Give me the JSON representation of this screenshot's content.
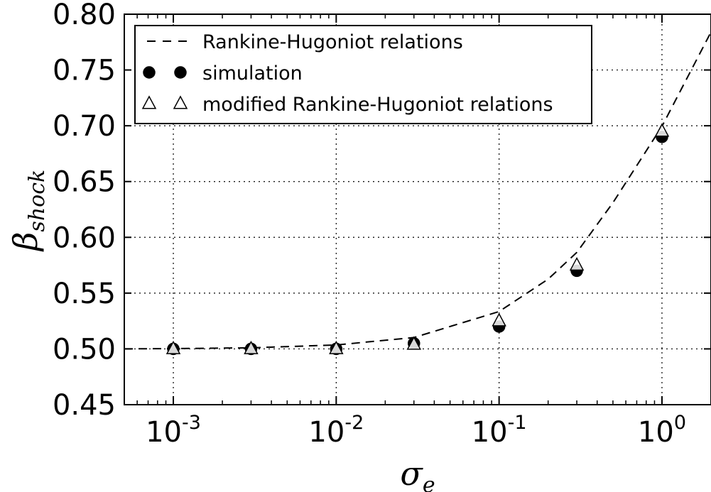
{
  "chart_data": {
    "type": "scatter",
    "xscale": "log",
    "xlim": [
      0.0005,
      2.0
    ],
    "ylim": [
      0.45,
      0.8
    ],
    "grid": true,
    "grid_style": "dotted",
    "legend_position": "top-left",
    "xlabel": {
      "base": "σ",
      "sub": "e"
    },
    "ylabel": {
      "base": "β",
      "sub": "shock"
    },
    "x_ticks": [
      {
        "value": 0.001,
        "base": "10",
        "exp": "-3"
      },
      {
        "value": 0.01,
        "base": "10",
        "exp": "-2"
      },
      {
        "value": 0.1,
        "base": "10",
        "exp": "-1"
      },
      {
        "value": 1,
        "base": "10",
        "exp": "0"
      }
    ],
    "y_ticks": [
      {
        "value": 0.45,
        "label": "0.45"
      },
      {
        "value": 0.5,
        "label": "0.50"
      },
      {
        "value": 0.55,
        "label": "0.55"
      },
      {
        "value": 0.6,
        "label": "0.60"
      },
      {
        "value": 0.65,
        "label": "0.65"
      },
      {
        "value": 0.7,
        "label": "0.70"
      },
      {
        "value": 0.75,
        "label": "0.75"
      },
      {
        "value": 0.8,
        "label": "0.80"
      }
    ],
    "series": [
      {
        "name": "Rankine-Hugoniot relations",
        "kind": "dashed-line",
        "x": [
          0.0005,
          0.001,
          0.003,
          0.01,
          0.03,
          0.1,
          0.2,
          0.3,
          0.5,
          1.0,
          2.0
        ],
        "y": [
          0.5,
          0.5003,
          0.501,
          0.5035,
          0.5102,
          0.5335,
          0.5625,
          0.5865,
          0.631,
          0.6995,
          0.784
        ]
      },
      {
        "name": "simulation",
        "kind": "filled-circle",
        "x": [
          0.001,
          0.003,
          0.01,
          0.03,
          0.1,
          0.3,
          1.0
        ],
        "y": [
          0.5,
          0.5,
          0.5,
          0.505,
          0.52,
          0.57,
          0.69
        ]
      },
      {
        "name": "modified Rankine-Hugoniot relations",
        "kind": "open-triangle",
        "x": [
          0.001,
          0.003,
          0.01,
          0.03,
          0.1,
          0.3,
          1.0
        ],
        "y": [
          0.5,
          0.5,
          0.5,
          0.504,
          0.525,
          0.575,
          0.695
        ]
      }
    ],
    "colors": {
      "line": "#000000",
      "marker_fill": "#000000",
      "triangle_fill": "#ffffff",
      "grid": "#000000"
    }
  }
}
